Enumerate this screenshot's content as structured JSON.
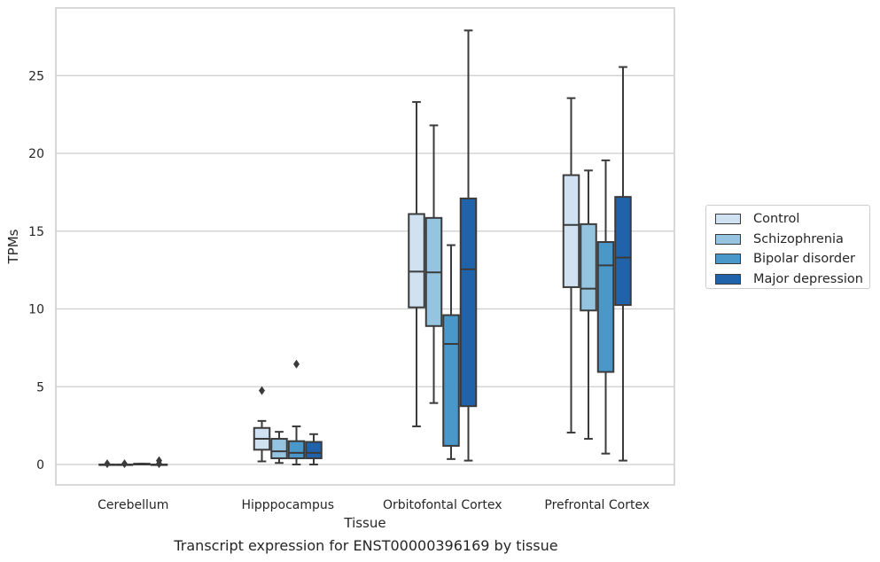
{
  "chart_data": {
    "type": "box",
    "title": "",
    "caption": "Transcript expression for ENST00000396169 by tissue",
    "xlabel": "Tissue",
    "ylabel": "TPMs",
    "ylim": [
      -1.3,
      29
    ],
    "yticks": [
      0,
      5,
      10,
      15,
      20,
      25
    ],
    "grid": "horizontal",
    "legend_placement": "outside-right",
    "categories": [
      "Cerebellum",
      "Hipppocampus",
      "Orbitofontal Cortex",
      "Prefrontal Cortex"
    ],
    "series": [
      {
        "name": "Control",
        "color": "#d0e1f2",
        "boxes": [
          {
            "whislo": 0,
            "q1": 0,
            "med": 0,
            "q3": 0,
            "whishi": 0,
            "fliers": [
              0.05
            ]
          },
          {
            "whislo": 0.2,
            "q1": 0.95,
            "med": 1.65,
            "q3": 2.35,
            "whishi": 2.8,
            "fliers": [
              4.75
            ]
          },
          {
            "whislo": 2.45,
            "q1": 10.1,
            "med": 12.4,
            "q3": 16.1,
            "whishi": 23.3,
            "fliers": []
          },
          {
            "whislo": 2.05,
            "q1": 11.4,
            "med": 15.4,
            "q3": 18.6,
            "whishi": 23.55,
            "fliers": []
          }
        ]
      },
      {
        "name": "Schizophrenia",
        "color": "#94c4df",
        "boxes": [
          {
            "whislo": 0,
            "q1": 0,
            "med": 0,
            "q3": 0,
            "whishi": 0,
            "fliers": [
              0.05
            ]
          },
          {
            "whislo": 0.1,
            "q1": 0.4,
            "med": 0.85,
            "q3": 1.65,
            "whishi": 2.1,
            "fliers": []
          },
          {
            "whislo": 3.95,
            "q1": 8.9,
            "med": 12.35,
            "q3": 15.85,
            "whishi": 21.8,
            "fliers": []
          },
          {
            "whislo": 1.65,
            "q1": 9.9,
            "med": 11.3,
            "q3": 15.45,
            "whishi": 18.9,
            "fliers": []
          }
        ]
      },
      {
        "name": "Bipolar disorder",
        "color": "#4a98c9",
        "boxes": [
          {
            "whislo": 0,
            "q1": 0,
            "med": 0,
            "q3": 0.05,
            "whishi": 0.05,
            "fliers": []
          },
          {
            "whislo": 0.0,
            "q1": 0.4,
            "med": 0.75,
            "q3": 1.5,
            "whishi": 2.45,
            "fliers": [
              6.45
            ]
          },
          {
            "whislo": 0.35,
            "q1": 1.2,
            "med": 7.75,
            "q3": 9.6,
            "whishi": 14.1,
            "fliers": []
          },
          {
            "whislo": 0.7,
            "q1": 5.95,
            "med": 12.8,
            "q3": 14.3,
            "whishi": 19.55,
            "fliers": []
          }
        ]
      },
      {
        "name": "Major depression",
        "color": "#2163aa",
        "boxes": [
          {
            "whislo": 0,
            "q1": 0,
            "med": 0,
            "q3": 0,
            "whishi": 0,
            "fliers": [
              0.05,
              0.25
            ]
          },
          {
            "whislo": 0.0,
            "q1": 0.4,
            "med": 0.75,
            "q3": 1.45,
            "whishi": 1.95,
            "fliers": []
          },
          {
            "whislo": 0.25,
            "q1": 3.75,
            "med": 12.55,
            "q3": 17.1,
            "whishi": 27.9,
            "fliers": []
          },
          {
            "whislo": 0.25,
            "q1": 10.25,
            "med": 13.3,
            "q3": 17.2,
            "whishi": 25.55,
            "fliers": []
          }
        ]
      }
    ]
  }
}
